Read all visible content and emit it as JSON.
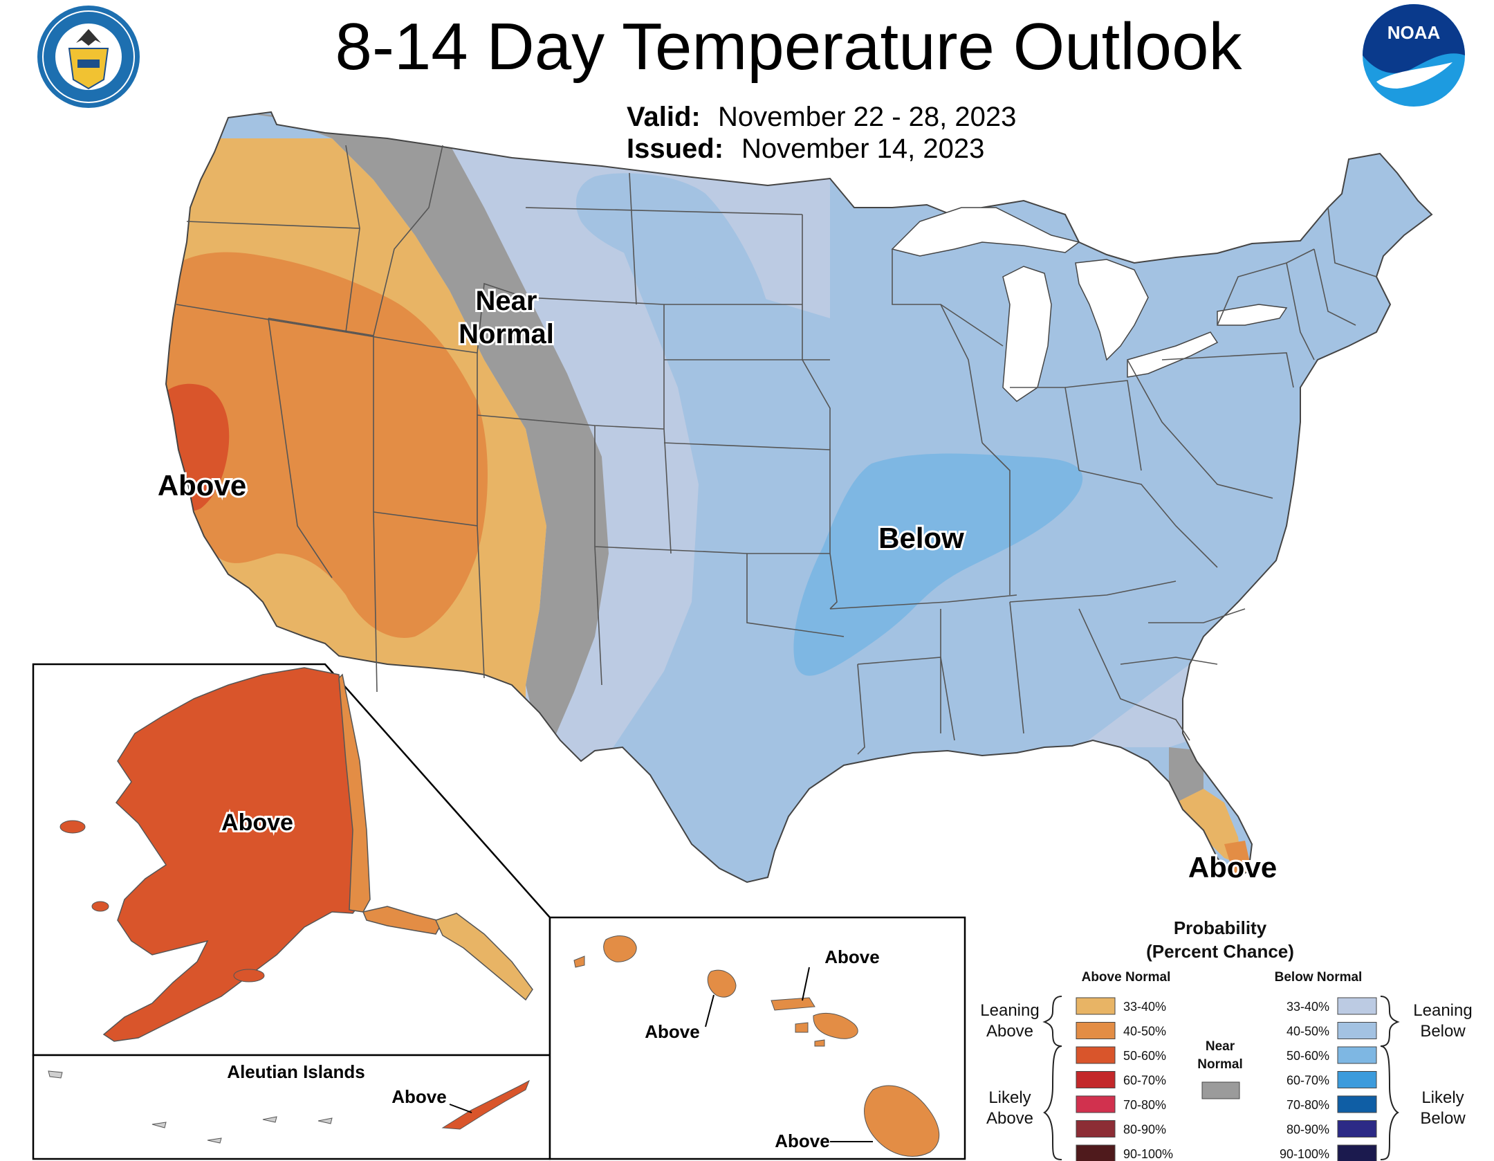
{
  "title": "8-14 Day Temperature Outlook",
  "valid_label": "Valid:",
  "valid_dates": "November 22 - 28, 2023",
  "issued_label": "Issued:",
  "issued_date": "November 14, 2023",
  "logos": {
    "commerce": "UNITED STATES OF AMERICA DEPARTMENT OF COMMERCE",
    "noaa": "NOAA"
  },
  "map_labels": {
    "near_normal_1": "Near",
    "near_normal_2": "Normal",
    "above_west": "Above",
    "below_central": "Below",
    "above_florida": "Above",
    "above_alaska": "Above",
    "aleutian_title": "Aleutian Islands",
    "above_aleutians": "Above",
    "above_hawaii_1": "Above",
    "above_hawaii_2": "Above",
    "above_hawaii_3": "Above"
  },
  "legend": {
    "title_1": "Probability",
    "title_2": "(Percent Chance)",
    "above_header": "Above Normal",
    "below_header": "Below Normal",
    "near_normal_1": "Near",
    "near_normal_2": "Normal",
    "leaning_above_1": "Leaning",
    "leaning_above_2": "Above",
    "likely_above_1": "Likely",
    "likely_above_2": "Above",
    "leaning_below_1": "Leaning",
    "leaning_below_2": "Below",
    "likely_below_1": "Likely",
    "likely_below_2": "Below",
    "above_bins": [
      {
        "label": "33-40%",
        "color": "#e8b465"
      },
      {
        "label": "40-50%",
        "color": "#e38d45"
      },
      {
        "label": "50-60%",
        "color": "#d9552b"
      },
      {
        "label": "60-70%",
        "color": "#c3282a"
      },
      {
        "label": "70-80%",
        "color": "#d1314e"
      },
      {
        "label": "80-90%",
        "color": "#8c2d35"
      },
      {
        "label": "90-100%",
        "color": "#4f1a1c"
      }
    ],
    "below_bins": [
      {
        "label": "33-40%",
        "color": "#bccbe3"
      },
      {
        "label": "40-50%",
        "color": "#a3c2e2"
      },
      {
        "label": "50-60%",
        "color": "#7eb7e3"
      },
      {
        "label": "60-70%",
        "color": "#3c9bdc"
      },
      {
        "label": "70-80%",
        "color": "#0f5ea5"
      },
      {
        "label": "80-90%",
        "color": "#2c2a86"
      },
      {
        "label": "90-100%",
        "color": "#1b1a4e"
      }
    ],
    "near_normal_color": "#9b9b9b"
  },
  "colors": {
    "near_normal": "#9b9b9b",
    "above_33_40": "#e8b465",
    "above_40_50": "#e38d45",
    "above_50_60": "#d9552b",
    "below_33_40": "#bccbe3",
    "below_40_50": "#a3c2e2",
    "below_50_60": "#7eb7e3"
  }
}
